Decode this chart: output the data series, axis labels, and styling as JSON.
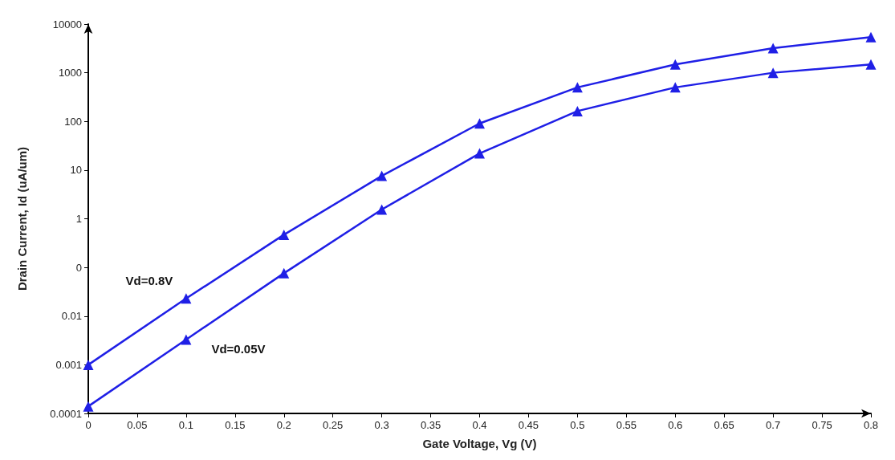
{
  "chart_data": {
    "type": "line",
    "xlabel": "Gate Voltage, Vg (V)",
    "ylabel": "Drain Current, Id (uA/um)",
    "x": [
      0,
      0.1,
      0.2,
      0.3,
      0.4,
      0.5,
      0.6,
      0.7,
      0.8
    ],
    "series": [
      {
        "name": "Vd=0.8V",
        "color": "#1f1fe6",
        "values": [
          0.001,
          0.023,
          0.47,
          7.6,
          91,
          500,
          1480,
          3200,
          5400
        ]
      },
      {
        "name": "Vd=0.05V",
        "color": "#1f1fe6",
        "values": [
          0.00014,
          0.0033,
          0.076,
          1.55,
          22,
          163,
          500,
          1000,
          1480
        ]
      }
    ],
    "xlim": [
      0,
      0.8
    ],
    "xticks": [
      0,
      0.05,
      0.1,
      0.15,
      0.2,
      0.25,
      0.3,
      0.35,
      0.4,
      0.45,
      0.5,
      0.55,
      0.6,
      0.65,
      0.7,
      0.75,
      0.8
    ],
    "ylim": [
      0.0001,
      10000
    ],
    "yticks": [
      0.0001,
      0.001,
      0.01,
      {
        "value": 0.1,
        "label": "0"
      },
      1,
      10,
      100,
      1000,
      10000
    ],
    "log": "y",
    "marker": "triangle",
    "grid": false,
    "legend": false
  }
}
